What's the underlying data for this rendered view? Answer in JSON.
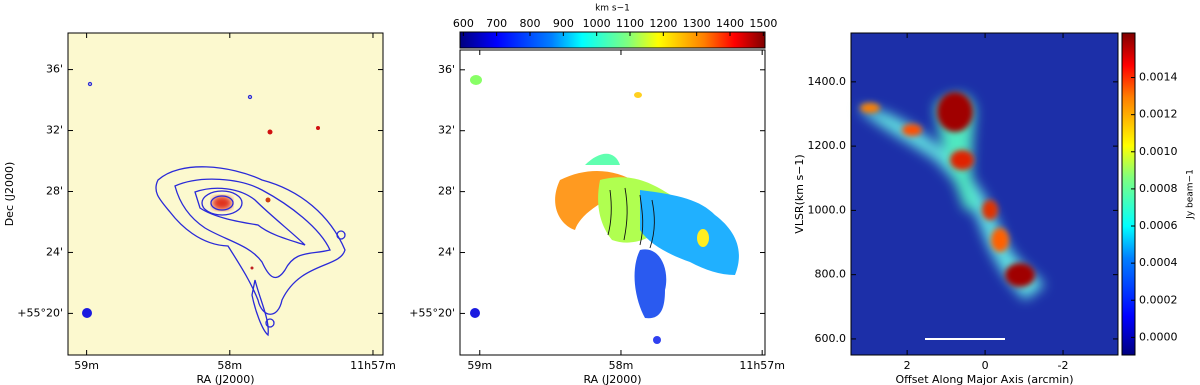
{
  "chart_data": [
    {
      "type": "image",
      "xlabel": "RA (J2000)",
      "ylabel": "Dec (J2000)",
      "xlim": [
        59.13,
        56.93
      ],
      "ylim": [
        17.27,
        38.4
      ],
      "xticks": [
        {
          "value": 59,
          "label": "59m"
        },
        {
          "value": 58,
          "label": "58m"
        },
        {
          "value": 57,
          "label": "11h57m"
        }
      ],
      "yticks": [
        {
          "value": 20,
          "label": "+55°20'"
        },
        {
          "value": 24,
          "label": "24'"
        },
        {
          "value": 28,
          "label": "28'"
        },
        {
          "value": 32,
          "label": "32'"
        },
        {
          "value": 36,
          "label": "36'"
        }
      ]
    },
    {
      "type": "image",
      "xlabel": "RA (J2000)",
      "xlim": [
        59.14,
        56.98
      ],
      "ylim": [
        17.27,
        37.3
      ],
      "xticks": [
        {
          "value": 59,
          "label": "59m"
        },
        {
          "value": 58,
          "label": "58m"
        },
        {
          "value": 57,
          "label": "11h57m"
        }
      ],
      "yticks": [
        {
          "value": 20,
          "label": "+55°20'"
        },
        {
          "value": 24,
          "label": "24'"
        },
        {
          "value": 28,
          "label": "28'"
        },
        {
          "value": 32,
          "label": "32'"
        },
        {
          "value": 36,
          "label": "36'"
        }
      ],
      "colorbar": {
        "label": "km s−1",
        "lim": [
          590,
          1505
        ],
        "ticks": [
          600,
          700,
          800,
          900,
          1000,
          1100,
          1200,
          1300,
          1400,
          1500
        ]
      }
    },
    {
      "type": "image",
      "xlabel": "Offset Along Major Axis (arcmin)",
      "ylabel": "VLSR(km s−1)",
      "xlim": [
        3.44,
        -3.41
      ],
      "ylim": [
        550,
        1552
      ],
      "xticks": [
        2,
        0,
        -2
      ],
      "yticks": [
        {
          "value": 600,
          "label": "600.0"
        },
        {
          "value": 800,
          "label": "800.0"
        },
        {
          "value": 1000,
          "label": "1000.0"
        },
        {
          "value": 1200,
          "label": "1200.0"
        },
        {
          "value": 1400,
          "label": "1400.0"
        }
      ],
      "colorbar": {
        "label": "Jy beam−1",
        "lim": [
          -9.5e-05,
          0.00164
        ],
        "ticks": [
          {
            "value": 0,
            "label": "0.0000"
          },
          {
            "value": 0.0002,
            "label": "0.0002"
          },
          {
            "value": 0.0004,
            "label": "0.0004"
          },
          {
            "value": 0.0006,
            "label": "0.0006"
          },
          {
            "value": 0.0008,
            "label": "0.0008"
          },
          {
            "value": 0.001,
            "label": "0.0010"
          },
          {
            "value": 0.0012,
            "label": "0.0012"
          },
          {
            "value": 0.0014,
            "label": "0.0014"
          }
        ]
      }
    }
  ]
}
